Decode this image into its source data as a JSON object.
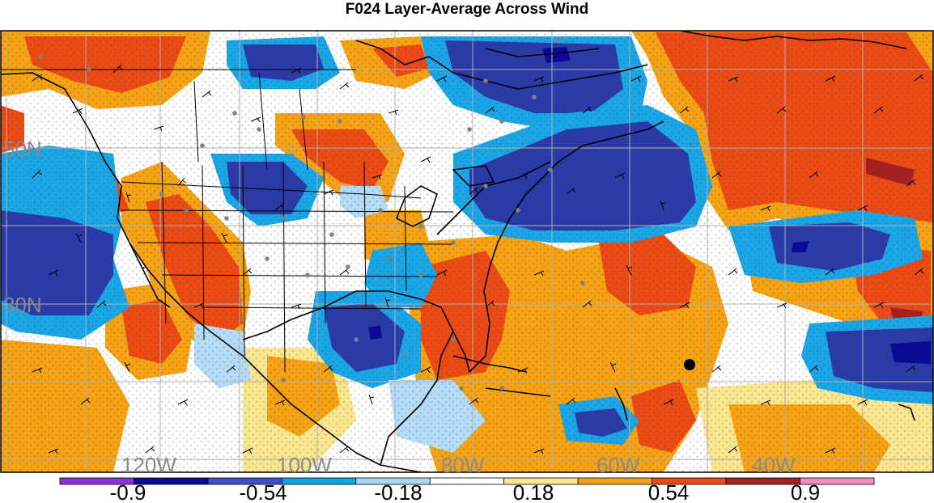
{
  "title": "F024 Layer-Average Across Wind",
  "lat_labels": [
    "50N",
    "30N"
  ],
  "lon_labels": [
    "120W",
    "100W",
    "80W",
    "60W",
    "40W"
  ],
  "colorbar": {
    "colors": [
      "#8e2fd8",
      "#0a0a96",
      "#3b4fc8",
      "#0aa8e6",
      "#a8d8f8",
      "#ffffff",
      "#fbe690",
      "#f5a214",
      "#eb4a14",
      "#a52020",
      "#f08cc0"
    ],
    "labels": [
      "-0.9",
      "-0.54",
      "-0.18",
      "0.18",
      "0.54",
      "0.9"
    ]
  },
  "legend_colors": {
    "strong_negative": "#2a3aa8",
    "negative": "#1aa6e6",
    "weak_negative": "#b4dcf6",
    "weak_positive": "#fbe690",
    "positive": "#f5a214",
    "strong_positive": "#eb4a14",
    "extreme_positive": "#a52020"
  },
  "markers": {
    "station_dot_color": "#808080",
    "highlight_dot_color": "#000000"
  }
}
